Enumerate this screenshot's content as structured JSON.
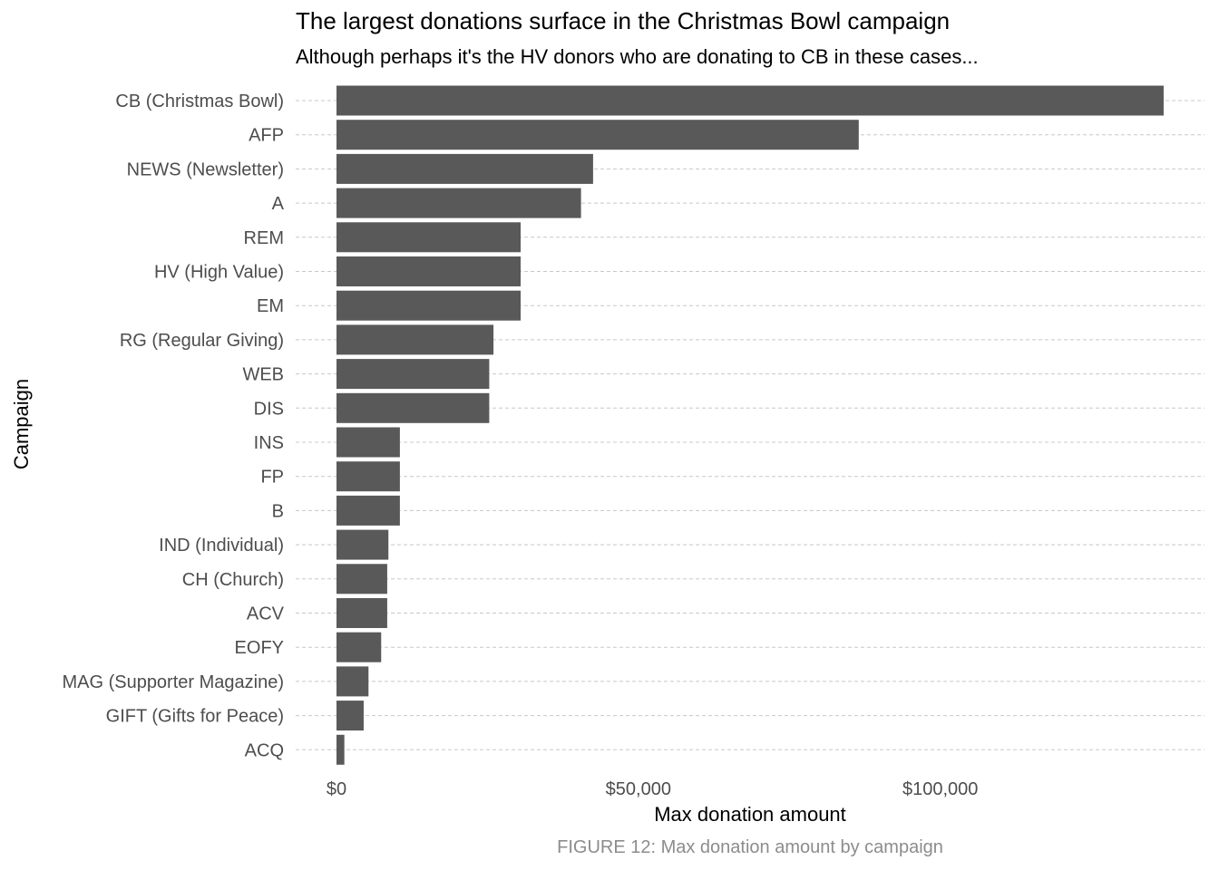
{
  "chart_data": {
    "type": "bar",
    "orientation": "horizontal",
    "title": "The largest donations surface in the Christmas Bowl campaign",
    "subtitle": "Although perhaps it's the HV donors who are donating to CB in these cases...",
    "xlabel": "Max donation amount",
    "ylabel": "Campaign",
    "caption": "FIGURE 12: Max donation amount by campaign",
    "categories": [
      "CB (Christmas Bowl)",
      "AFP",
      "NEWS (Newsletter)",
      "A",
      "REM",
      "HV (High Value)",
      "EM",
      "RG (Regular Giving)",
      "WEB",
      "DIS",
      "INS",
      "FP",
      "B",
      "IND (Individual)",
      "CH (Church)",
      "ACV",
      "EOFY",
      "MAG (Supporter Magazine)",
      "GIFT (Gifts for Peace)",
      "ACQ"
    ],
    "values": [
      137000,
      86500,
      42500,
      40500,
      30500,
      30500,
      30500,
      26000,
      25300,
      25300,
      10500,
      10500,
      10500,
      8600,
      8400,
      8400,
      7400,
      5300,
      4500,
      1300
    ],
    "xticks": [
      {
        "value": 0,
        "label": "$0"
      },
      {
        "value": 50000,
        "label": "$50,000"
      },
      {
        "value": 100000,
        "label": "$100,000"
      }
    ],
    "xlim": [
      0,
      137000
    ],
    "grid": "horizontal dashed",
    "bar_color": "#595959"
  }
}
